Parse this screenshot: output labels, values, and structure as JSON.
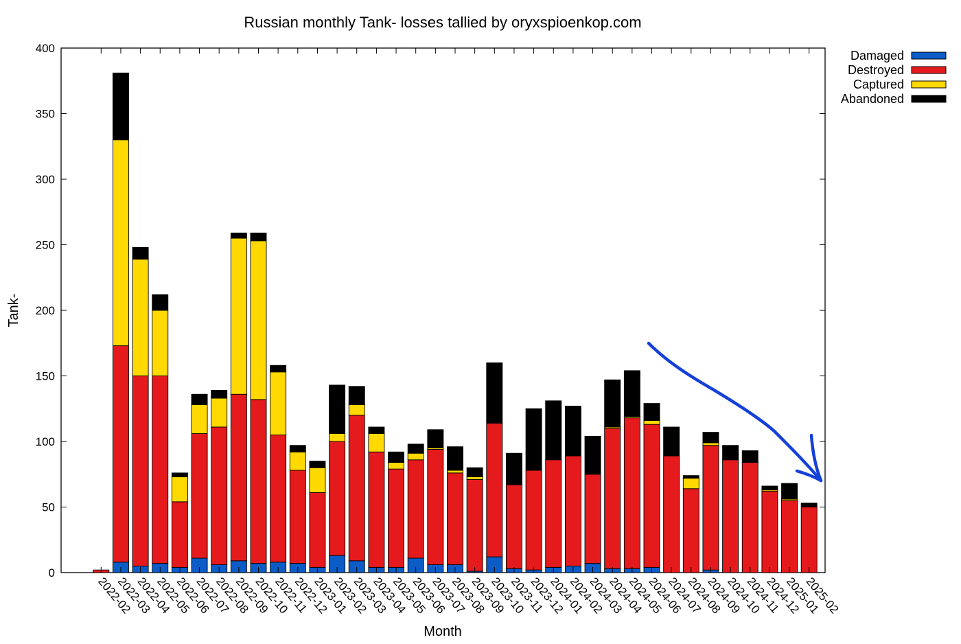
{
  "chart_data": {
    "type": "bar",
    "stacked": true,
    "title": "Russian monthly Tank- losses tallied by oryxspioenkop.com",
    "xlabel": "Month",
    "ylabel": "Tank-",
    "ylim": [
      0,
      400
    ],
    "yticks": [
      "0",
      "50",
      "100",
      "150",
      "200",
      "250",
      "300",
      "350",
      "400"
    ],
    "legend_position": "outside-top-right",
    "categories": [
      "2022-02",
      "2022-03",
      "2022-04",
      "2022-05",
      "2022-06",
      "2022-07",
      "2022-08",
      "2022-09",
      "2022-10",
      "2022-11",
      "2022-12",
      "2023-01",
      "2023-02",
      "2023-03",
      "2023-04",
      "2023-05",
      "2023-06",
      "2023-07",
      "2023-08",
      "2023-09",
      "2023-10",
      "2023-11",
      "2023-12",
      "2024-01",
      "2024-02",
      "2024-03",
      "2024-04",
      "2024-05",
      "2024-06",
      "2024-07",
      "2024-08",
      "2024-09",
      "2024-10",
      "2024-11",
      "2024-12",
      "2025-01",
      "2025-02"
    ],
    "series": [
      {
        "name": "Damaged",
        "color": "#0b5cc7",
        "values": [
          0,
          8,
          5,
          7,
          4,
          11,
          6,
          9,
          7,
          8,
          7,
          4,
          13,
          9,
          4,
          4,
          11,
          6,
          6,
          1,
          12,
          3,
          2,
          4,
          5,
          7,
          3,
          3,
          4,
          0,
          0,
          2,
          0,
          0,
          0,
          0,
          0
        ]
      },
      {
        "name": "Destroyed",
        "color": "#e41a1c",
        "values": [
          2,
          165,
          145,
          143,
          50,
          95,
          105,
          127,
          125,
          97,
          71,
          57,
          87,
          111,
          88,
          75,
          75,
          88,
          70,
          70,
          102,
          64,
          76,
          82,
          84,
          68,
          107,
          115,
          109,
          89,
          64,
          95,
          86,
          84,
          62,
          55,
          50
        ]
      },
      {
        "name": "Captured",
        "color": "#ffd900",
        "values": [
          0,
          157,
          89,
          50,
          19,
          22,
          22,
          119,
          121,
          48,
          14,
          19,
          6,
          8,
          14,
          5,
          5,
          1,
          2,
          2,
          0,
          0,
          0,
          0,
          0,
          0,
          1,
          1,
          3,
          0,
          8,
          2,
          0,
          0,
          1,
          1,
          0
        ]
      },
      {
        "name": "Abandoned",
        "color": "#000000",
        "values": [
          0,
          51,
          9,
          12,
          3,
          8,
          6,
          4,
          6,
          5,
          5,
          5,
          37,
          14,
          5,
          8,
          7,
          14,
          18,
          7,
          46,
          24,
          47,
          45,
          38,
          29,
          36,
          35,
          13,
          22,
          2,
          8,
          11,
          9,
          3,
          12,
          3
        ]
      }
    ],
    "annotation": {
      "type": "hand-drawn-arrow",
      "color": "#1540d8",
      "meaning": "downward trend"
    }
  }
}
